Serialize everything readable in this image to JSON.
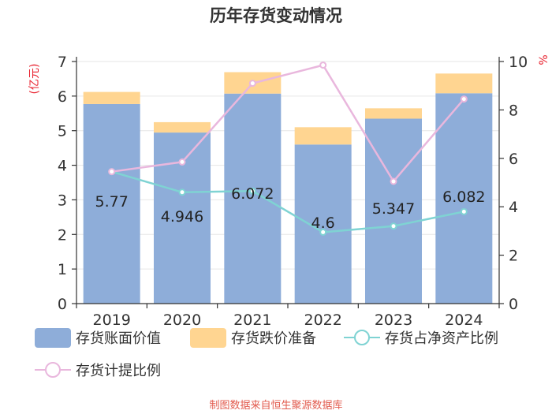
{
  "chart_data": {
    "type": "bar",
    "title": "历年存货变动情况",
    "categories": [
      "2019",
      "2020",
      "2021",
      "2022",
      "2023",
      "2024"
    ],
    "series": [
      {
        "name": "存货账面价值",
        "type": "bar",
        "stack": "total",
        "axis": "left",
        "color": "#8eadd9",
        "values": [
          5.77,
          4.946,
          6.072,
          4.6,
          5.347,
          6.082
        ]
      },
      {
        "name": "存货跌价准备",
        "type": "bar",
        "stack": "total",
        "axis": "left",
        "color": "#ffd591",
        "values": [
          0.35,
          0.3,
          0.62,
          0.5,
          0.3,
          0.57
        ]
      },
      {
        "name": "存货占净资产比例",
        "type": "line",
        "axis": "right",
        "color": "#7fd3d3",
        "values": [
          5.45,
          4.6,
          4.65,
          2.95,
          3.2,
          3.8
        ]
      },
      {
        "name": "存货计提比例",
        "type": "line",
        "axis": "right",
        "color": "#e9b7dd",
        "values": [
          5.45,
          5.85,
          9.1,
          9.85,
          5.05,
          8.45
        ]
      }
    ],
    "y_left": {
      "unit": "(亿元)",
      "min": 0,
      "max": 7,
      "ticks": [
        0,
        1,
        2,
        3,
        4,
        5,
        6,
        7
      ]
    },
    "y_right": {
      "unit": "%",
      "min": 0,
      "max": 10,
      "ticks": [
        0,
        2,
        4,
        6,
        8,
        10
      ]
    },
    "bar_labels": [
      "5.77",
      "4.946",
      "6.072",
      "4.6",
      "5.347",
      "6.082"
    ],
    "grid": true,
    "legend_position": "bottom"
  },
  "source": "制图数据来自恒生聚源数据库"
}
